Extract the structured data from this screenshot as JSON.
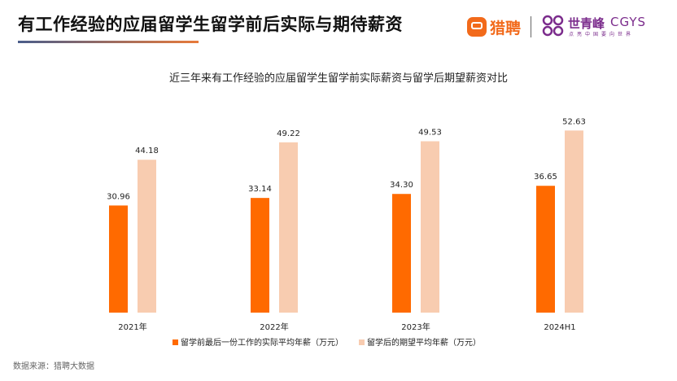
{
  "header": {
    "title": "有工作经验的应届留学生留学前后实际与期待薪资",
    "brand_liepin": "猎聘",
    "brand_cgys_cn": "世青峰",
    "brand_cgys_en": "CGYS",
    "brand_cgys_tag": "点亮中国要向世界"
  },
  "colors": {
    "series_before": "#ff6a00",
    "series_after": "#f8ccb0",
    "brand_orange": "#f26a1b",
    "brand_purple": "#7b2c8c"
  },
  "chart_data": {
    "type": "bar",
    "title": "近三年来有工作经验的应届留学生留学前实际薪资与留学后期望薪资对比",
    "categories": [
      "2021年",
      "2022年",
      "2023年",
      "2024H1"
    ],
    "series": [
      {
        "name": "留学前最后一份工作的实际平均年薪（万元）",
        "values": [
          30.96,
          33.14,
          34.3,
          36.65
        ]
      },
      {
        "name": "留学后的期望平均年薪（万元）",
        "values": [
          44.18,
          49.22,
          49.53,
          52.63
        ]
      }
    ],
    "ylim": [
      0,
      60
    ],
    "grid": false,
    "legend_position": "bottom",
    "xlabel": "",
    "ylabel": ""
  },
  "footer": {
    "source": "数据来源：猎聘大数据"
  }
}
